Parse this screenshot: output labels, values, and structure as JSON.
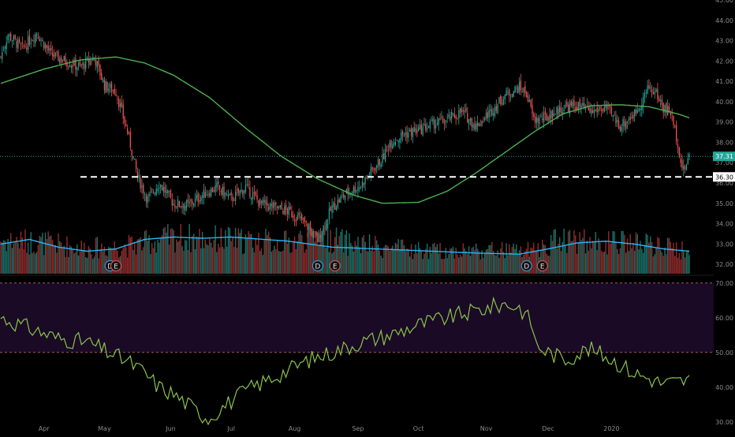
{
  "colors": {
    "background": "#000000",
    "up": "#26a69a",
    "down": "#ef5350",
    "vol_up": "#1b6e66",
    "vol_down": "#8f2a2a",
    "ma": "#4caf50",
    "vol_ma": "#29b6f6",
    "rsi": "#8bc34a",
    "rsi_band": "#1a0a26",
    "rsi_band_line": "#9e5a5a",
    "price_axis_text": "#8a8a8a",
    "last_price_badge": "#26a69a",
    "level_badge": "#ffffff"
  },
  "chart_data": [
    {
      "type": "candlestick",
      "title": "",
      "grid": false,
      "ylim": [
        31.5,
        45.0
      ],
      "y_ticks": [
        "45.00",
        "44.00",
        "43.00",
        "42.00",
        "41.00",
        "40.00",
        "39.00",
        "38.00",
        "37.00",
        "36.00",
        "35.00",
        "34.00",
        "33.00",
        "32.00"
      ],
      "x_ticks": [
        "Apr",
        "May",
        "Jun",
        "Jul",
        "Aug",
        "Sep",
        "Oct",
        "Nov",
        "Dec",
        "2020"
      ],
      "last_price": "37.31",
      "support_level": "36.30",
      "support_value": 36.3,
      "moving_average_anchors": [
        [
          0,
          40.9
        ],
        [
          30,
          41.6
        ],
        [
          55,
          42.05
        ],
        [
          80,
          42.2
        ],
        [
          100,
          41.9
        ],
        [
          120,
          41.3
        ],
        [
          145,
          40.2
        ],
        [
          170,
          38.7
        ],
        [
          195,
          37.3
        ],
        [
          220,
          36.2
        ],
        [
          245,
          35.4
        ],
        [
          265,
          35.0
        ],
        [
          290,
          35.05
        ],
        [
          310,
          35.6
        ],
        [
          330,
          36.5
        ],
        [
          350,
          37.5
        ],
        [
          370,
          38.5
        ],
        [
          390,
          39.4
        ],
        [
          410,
          39.8
        ],
        [
          430,
          39.85
        ],
        [
          450,
          39.75
        ],
        [
          470,
          39.4
        ],
        [
          478,
          39.2
        ]
      ],
      "close_anchors": [
        [
          0,
          42.2
        ],
        [
          5,
          43.3
        ],
        [
          15,
          42.6
        ],
        [
          25,
          43.4
        ],
        [
          35,
          42.3
        ],
        [
          45,
          42.0
        ],
        [
          55,
          41.7
        ],
        [
          65,
          42.2
        ],
        [
          72,
          40.8
        ],
        [
          80,
          40.5
        ],
        [
          88,
          38.5
        ],
        [
          95,
          36.3
        ],
        [
          102,
          35.2
        ],
        [
          110,
          36.0
        ],
        [
          120,
          35.0
        ],
        [
          130,
          34.9
        ],
        [
          140,
          35.4
        ],
        [
          150,
          35.8
        ],
        [
          160,
          35.2
        ],
        [
          170,
          35.8
        ],
        [
          180,
          35.0
        ],
        [
          190,
          34.8
        ],
        [
          200,
          34.6
        ],
        [
          210,
          34.1
        ],
        [
          220,
          33.2
        ],
        [
          230,
          34.8
        ],
        [
          240,
          35.5
        ],
        [
          250,
          35.9
        ],
        [
          260,
          36.8
        ],
        [
          265,
          37.2
        ],
        [
          270,
          38.0
        ],
        [
          280,
          38.4
        ],
        [
          290,
          38.6
        ],
        [
          300,
          38.9
        ],
        [
          310,
          39.1
        ],
        [
          320,
          39.5
        ],
        [
          330,
          38.8
        ],
        [
          340,
          39.5
        ],
        [
          350,
          40.3
        ],
        [
          360,
          40.7
        ],
        [
          365,
          40.4
        ],
        [
          370,
          39.1
        ],
        [
          378,
          39.2
        ],
        [
          390,
          39.7
        ],
        [
          400,
          39.8
        ],
        [
          410,
          39.5
        ],
        [
          420,
          39.7
        ],
        [
          430,
          38.8
        ],
        [
          440,
          39.4
        ],
        [
          450,
          40.7
        ],
        [
          455,
          40.4
        ],
        [
          460,
          39.7
        ],
        [
          465,
          39.5
        ],
        [
          470,
          38.0
        ],
        [
          472,
          37.0
        ],
        [
          474,
          36.6
        ],
        [
          478,
          37.31
        ]
      ],
      "volume_anchors": [
        [
          0,
          0.6
        ],
        [
          30,
          0.55
        ],
        [
          60,
          0.45
        ],
        [
          90,
          0.5
        ],
        [
          120,
          0.65
        ],
        [
          160,
          0.6
        ],
        [
          200,
          0.55
        ],
        [
          220,
          0.7
        ],
        [
          240,
          0.55
        ],
        [
          270,
          0.45
        ],
        [
          300,
          0.4
        ],
        [
          330,
          0.42
        ],
        [
          370,
          0.4
        ],
        [
          390,
          0.65
        ],
        [
          410,
          0.55
        ],
        [
          440,
          0.55
        ],
        [
          478,
          0.4
        ]
      ],
      "volume_ma_anchors": [
        [
          0,
          0.5
        ],
        [
          20,
          0.58
        ],
        [
          40,
          0.45
        ],
        [
          60,
          0.38
        ],
        [
          80,
          0.42
        ],
        [
          100,
          0.58
        ],
        [
          120,
          0.62
        ],
        [
          140,
          0.6
        ],
        [
          160,
          0.62
        ],
        [
          200,
          0.55
        ],
        [
          230,
          0.45
        ],
        [
          260,
          0.42
        ],
        [
          300,
          0.38
        ],
        [
          330,
          0.35
        ],
        [
          360,
          0.33
        ],
        [
          380,
          0.42
        ],
        [
          400,
          0.52
        ],
        [
          420,
          0.55
        ],
        [
          440,
          0.5
        ],
        [
          460,
          0.42
        ],
        [
          478,
          0.38
        ]
      ],
      "markers": [
        "D",
        "E",
        "D",
        "E",
        "D",
        "E"
      ],
      "marker_bars": [
        76,
        80,
        220,
        232,
        365,
        376
      ]
    },
    {
      "type": "line",
      "title": "",
      "ylim": [
        27,
        72
      ],
      "y_ticks": [
        "70.00",
        "60.00",
        "50.00",
        "40.00",
        "30.00"
      ],
      "band": [
        50,
        70
      ],
      "values": [
        60,
        57,
        54,
        53,
        50,
        47,
        44,
        40,
        38,
        35,
        32,
        31,
        33,
        36,
        39,
        41,
        43,
        45,
        48,
        50,
        53,
        55,
        58,
        60,
        62,
        64,
        63,
        59,
        52,
        50,
        48,
        51,
        49,
        44,
        41,
        42
      ],
      "x_positions": [
        0,
        20,
        40,
        60,
        75,
        90,
        100,
        110,
        120,
        130,
        140,
        145,
        150,
        160,
        170,
        180,
        190,
        200,
        215,
        230,
        250,
        270,
        290,
        310,
        330,
        350,
        360,
        368,
        372,
        380,
        392,
        408,
        420,
        440,
        460,
        478
      ]
    }
  ]
}
